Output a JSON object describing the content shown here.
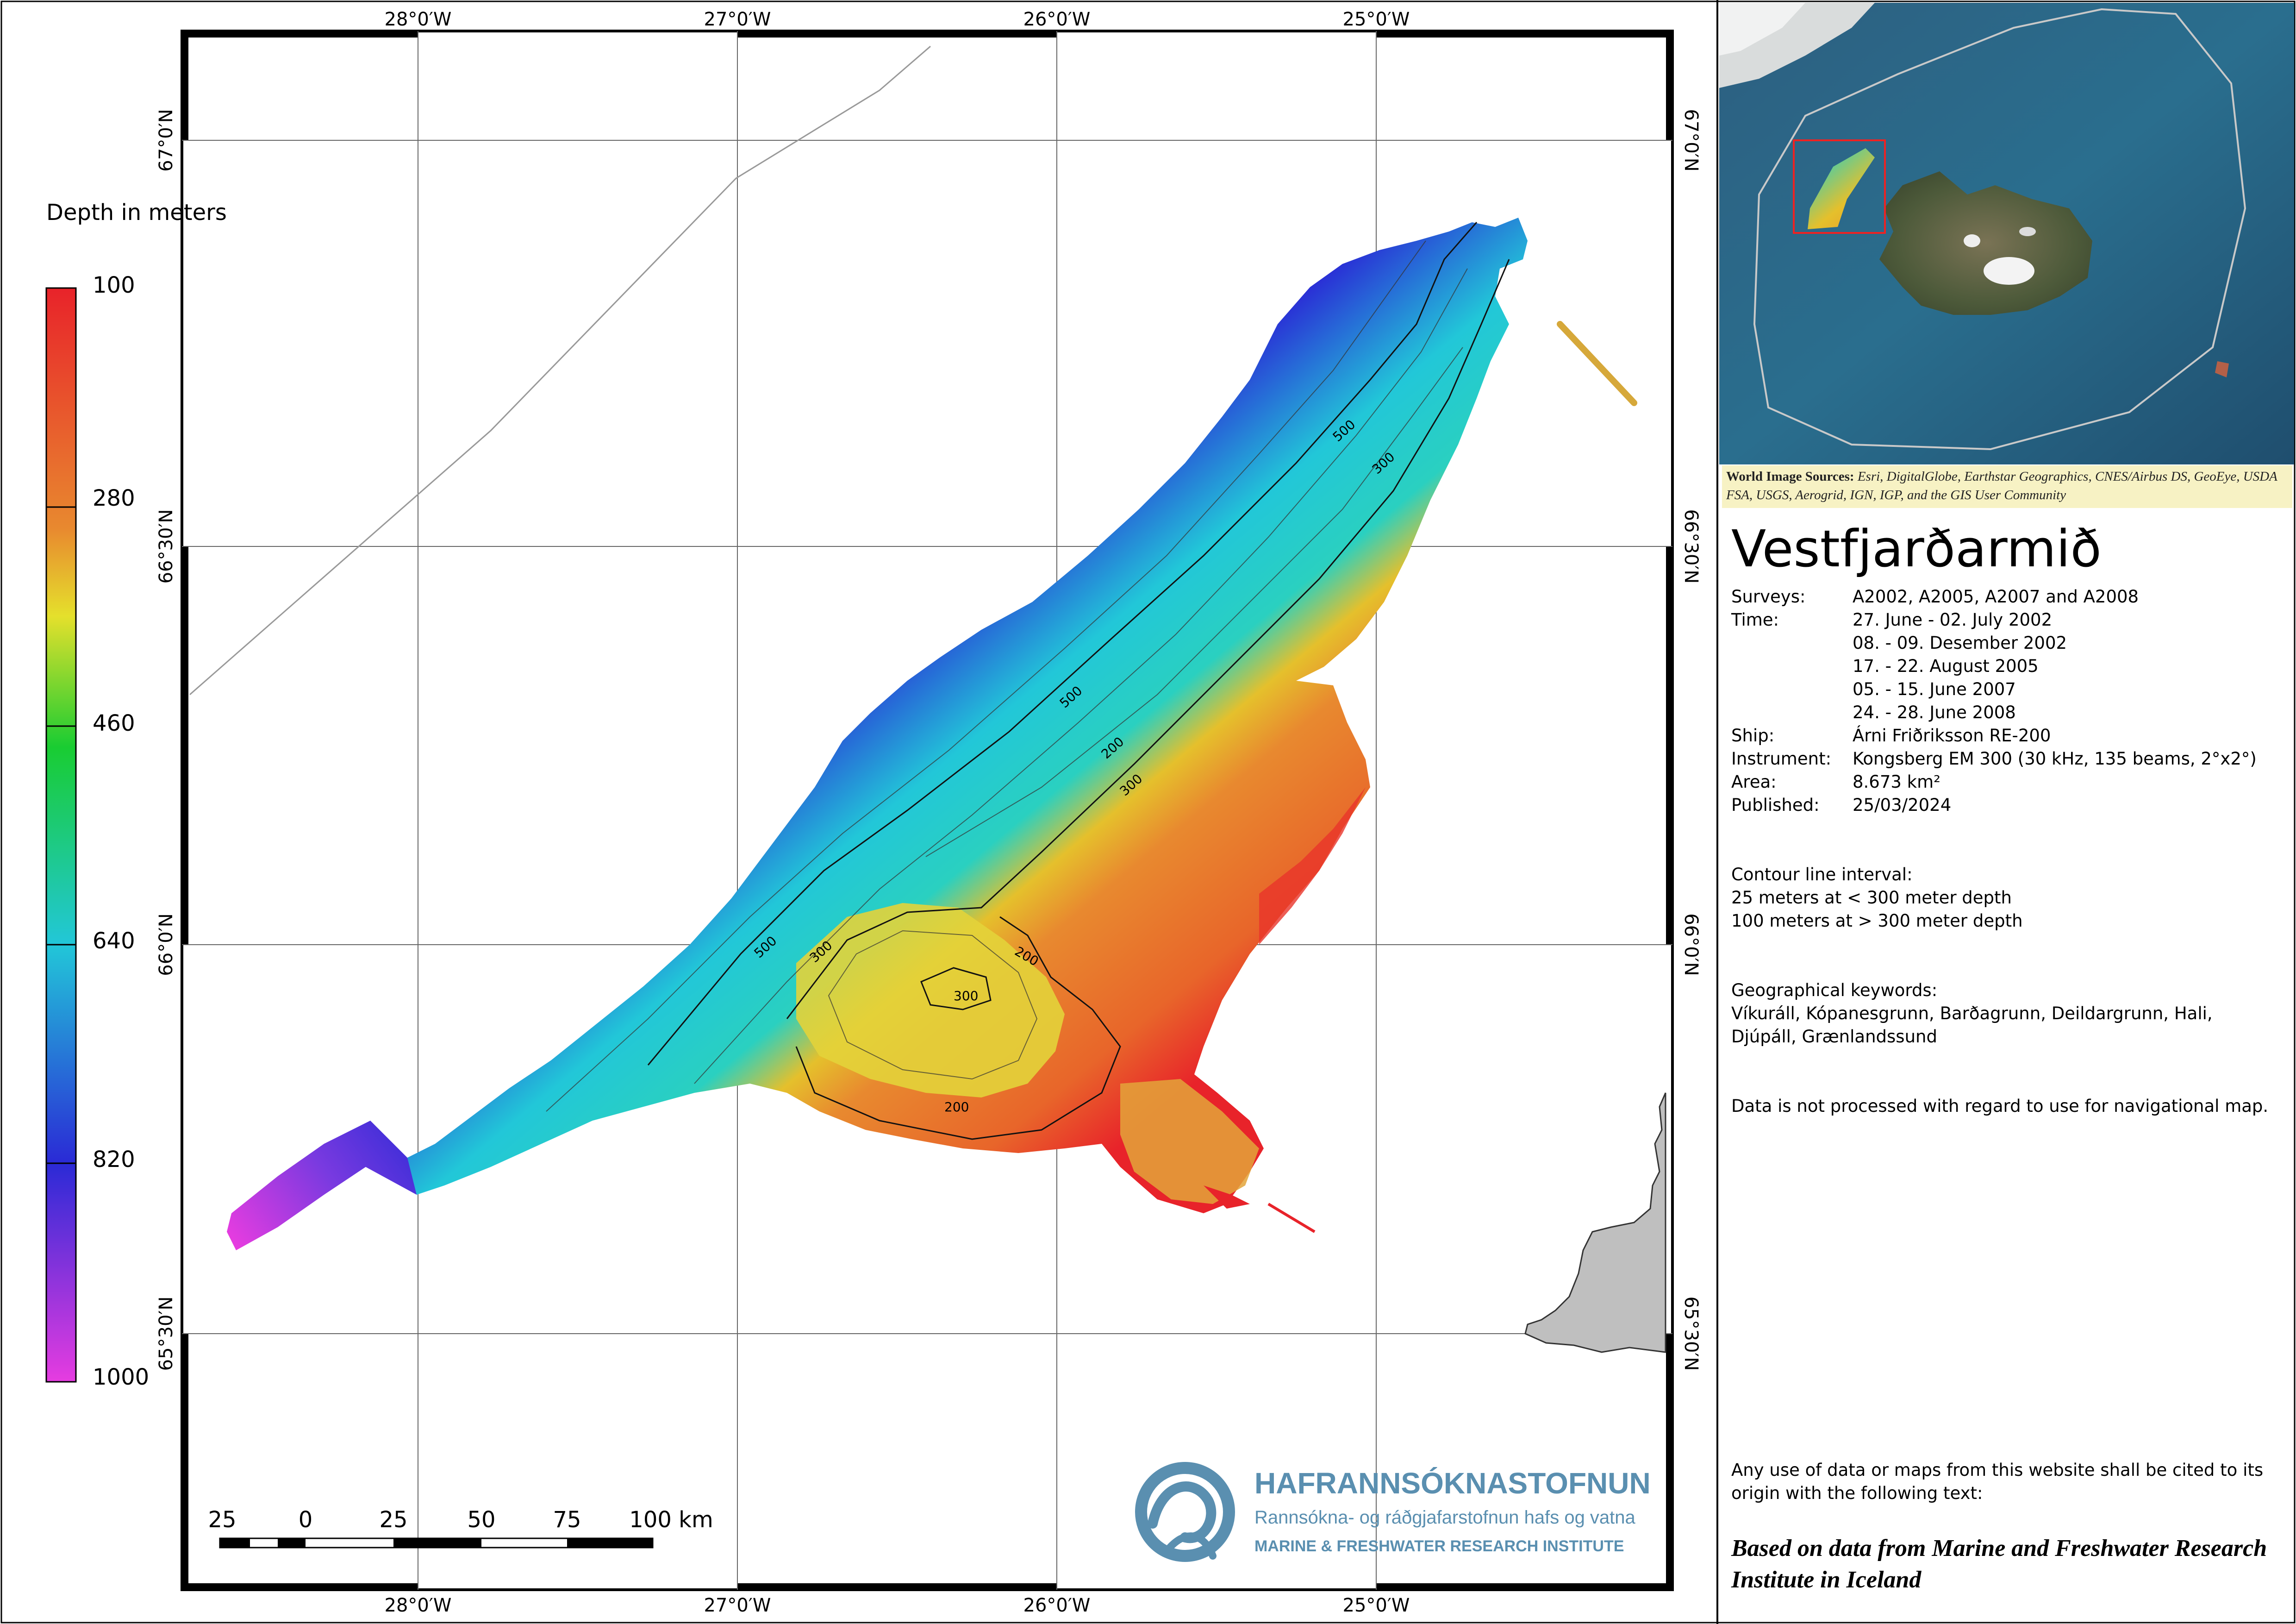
{
  "map": {
    "longitude_labels": [
      "28°0′W",
      "27°0′W",
      "26°0′W",
      "25°0′W"
    ],
    "latitude_labels": [
      "67°0′N",
      "66°30′N",
      "66°0′N",
      "65°30′N"
    ],
    "contour_labels": [
      "500",
      "300",
      "500",
      "200",
      "300",
      "500",
      "300",
      "300",
      "200",
      "200"
    ]
  },
  "legend": {
    "title": "Depth in meters",
    "tick_labels": [
      "100",
      "280",
      "460",
      "640",
      "820",
      "1000"
    ],
    "colors": [
      "#e8232a",
      "#e8892f",
      "#e5e02c",
      "#19cc32",
      "#22c7d8",
      "#2a2ad6",
      "#e63ce0"
    ]
  },
  "scale_bar": {
    "labels": [
      "25",
      "0",
      "25",
      "50",
      "75",
      "100 km"
    ]
  },
  "logo": {
    "name": "HAFRANNSÓKNASTOFNUN",
    "subtitle": "Rannsókna- og ráðgjafarstofnun hafs og vatna",
    "english": "MARINE & FRESHWATER RESEARCH INSTITUTE",
    "color": "#5a8fb0"
  },
  "credits": {
    "label": "World Image Sources:",
    "text": "Esri, DigitalGlobe, Earthstar Geographics, CNES/Airbus DS, GeoEye, USDA FSA, USGS, Aerogrid, IGN, IGP, and the GIS User Community"
  },
  "info": {
    "title": "Vestfjarðarmið",
    "meta": [
      {
        "key": "Surveys:",
        "value": "A2002, A2005, A2007 and A2008"
      },
      {
        "key": "Time:",
        "value": "27. June - 02. July 2002"
      },
      {
        "key": "",
        "value": "08. - 09. Desember 2002"
      },
      {
        "key": "",
        "value": "17. - 22. August 2005"
      },
      {
        "key": "",
        "value": "05. - 15. June 2007"
      },
      {
        "key": "",
        "value": "24. - 28. June 2008"
      },
      {
        "key": "Ship:",
        "value": "Árni Friðriksson RE-200"
      },
      {
        "key": "Instrument:",
        "value": "Kongsberg EM 300 (30 kHz, 135 beams, 2°x2°)"
      },
      {
        "key": "Area:",
        "value": "8.673 km²"
      },
      {
        "key": "Published:",
        "value": "25/03/2024"
      }
    ],
    "contour_heading": "Contour line interval:",
    "contour_line1": "25 meters at < 300 meter depth",
    "contour_line2": "100 meters at > 300 meter depth",
    "keywords_heading": "Geographical keywords:",
    "keywords_line1": "Víkuráll, Kópanesgrunn, Barðagrunn, Deildargrunn, Hali,",
    "keywords_line2": "Djúpáll, Grænlandssund",
    "disclaimer": "Data is not processed with regard to use for navigational map.",
    "citation_note": "Any use of data or maps from this website shall be cited to its origin with the following text:",
    "citation_text": "Based on data from Marine and Freshwater Research Institute in Iceland"
  }
}
